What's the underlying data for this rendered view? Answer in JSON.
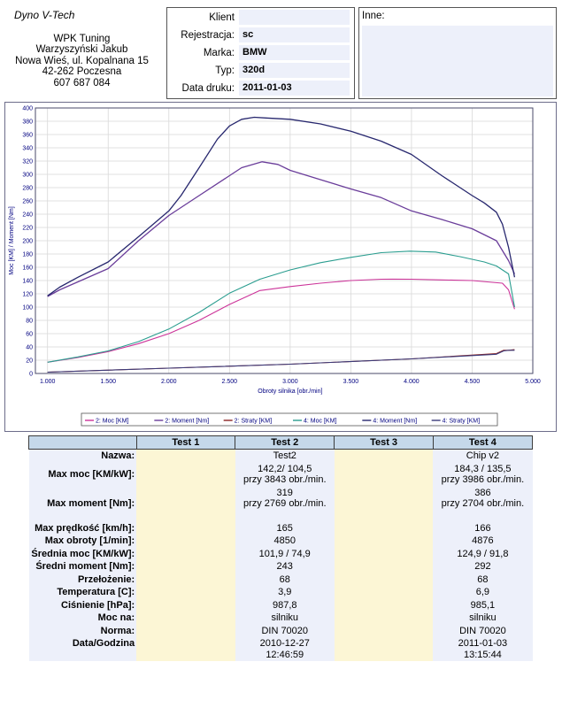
{
  "company": {
    "brand": "Dyno V-Tech",
    "lines": [
      "WPK Tuning",
      "Warzyszyński Jakub",
      "Nowa Wieś, ul. Kopalnana 15",
      "42-262 Poczesna",
      "607 687 084"
    ]
  },
  "info": [
    {
      "label": "Klient",
      "value": ""
    },
    {
      "label": "Rejestracja:",
      "value": "sc"
    },
    {
      "label": "Marka:",
      "value": "BMW"
    },
    {
      "label": "Typ:",
      "value": "320d"
    },
    {
      "label": "Data druku:",
      "value": "2011-01-03"
    }
  ],
  "notes_label": "Inne:",
  "chart_data": {
    "type": "line",
    "xlabel": "Obroty silnika [obr./min]",
    "ylabel": "Moc [KM] / Moment [Nm]",
    "xlim": [
      900,
      5000
    ],
    "ylim": [
      0,
      400
    ],
    "x_ticks": [
      1000,
      1500,
      2000,
      2500,
      3000,
      3500,
      4000,
      4500,
      5000
    ],
    "x_tick_labels": [
      "1.000",
      "1.500",
      "2.000",
      "2.500",
      "3.000",
      "3.500",
      "4.000",
      "4.500",
      "5.000"
    ],
    "y_ticks": [
      0,
      20,
      40,
      60,
      80,
      100,
      120,
      140,
      160,
      180,
      200,
      220,
      240,
      260,
      280,
      300,
      320,
      340,
      360,
      380,
      400
    ],
    "grid": true,
    "legend_position": "bottom",
    "series": [
      {
        "name": "2: Moc [KM]",
        "color": "#cc3399",
        "x": [
          1000,
          1250,
          1500,
          1750,
          2000,
          2250,
          2500,
          2750,
          3000,
          3250,
          3500,
          3750,
          3843,
          4000,
          4250,
          4500,
          4750,
          4800,
          4850
        ],
        "y": [
          17,
          24,
          33,
          45,
          60,
          80,
          104,
          125,
          131,
          136,
          140,
          142,
          142.2,
          142,
          141,
          140,
          136,
          126,
          97
        ]
      },
      {
        "name": "2: Moment [Nm]",
        "color": "#6a3d9a",
        "x": [
          1000,
          1100,
          1250,
          1500,
          1750,
          2000,
          2250,
          2500,
          2600,
          2769,
          2900,
          3000,
          3250,
          3500,
          3750,
          4000,
          4250,
          4500,
          4700,
          4800,
          4850
        ],
        "y": [
          116,
          126,
          138,
          158,
          200,
          238,
          268,
          298,
          310,
          319,
          315,
          306,
          292,
          278,
          265,
          245,
          232,
          218,
          200,
          170,
          150
        ],
        "width": 1.3
      },
      {
        "name": "2: Straty [KM]",
        "color": "#8b2323",
        "x": [
          1000,
          2000,
          3000,
          4000,
          4700,
          4760,
          4800,
          4850
        ],
        "y": [
          2,
          8,
          14,
          22,
          30,
          35,
          35,
          36
        ]
      },
      {
        "name": "4: Moc [KM]",
        "color": "#2a9d8f",
        "x": [
          1000,
          1250,
          1500,
          1750,
          2000,
          2250,
          2500,
          2750,
          3000,
          3250,
          3500,
          3750,
          3986,
          4200,
          4400,
          4600,
          4700,
          4800,
          4850
        ],
        "y": [
          17,
          25,
          34,
          48,
          67,
          92,
          121,
          142,
          156,
          167,
          175,
          182,
          184.3,
          183,
          176,
          168,
          162,
          150,
          100
        ]
      },
      {
        "name": "4: Moment [Nm]",
        "color": "#27276e",
        "x": [
          1000,
          1100,
          1250,
          1500,
          1750,
          2000,
          2100,
          2250,
          2400,
          2500,
          2600,
          2704,
          2800,
          3000,
          3250,
          3500,
          3750,
          4000,
          4250,
          4500,
          4600,
          4700,
          4750,
          4800,
          4850
        ],
        "y": [
          117,
          130,
          145,
          168,
          206,
          245,
          268,
          310,
          353,
          373,
          383,
          386,
          385,
          383,
          376,
          365,
          350,
          330,
          298,
          268,
          257,
          243,
          225,
          190,
          145
        ],
        "width": 1.3
      },
      {
        "name": "4: Straty [KM]",
        "color": "#3b3b7a",
        "x": [
          1000,
          2000,
          3000,
          4000,
          4700,
          4760,
          4800,
          4850
        ],
        "y": [
          2,
          8,
          14,
          22,
          29,
          34,
          35,
          35
        ]
      }
    ]
  },
  "results": {
    "headers": [
      "Test 1",
      "Test 2",
      "Test 3",
      "Test 4"
    ],
    "rows": [
      {
        "label": "Nazwa:",
        "t2": "Test2",
        "t4": "Chip v2"
      },
      {
        "label": "Max moc [KM/kW]:",
        "t2": "142,2/ 104,5\nprzy 3843 obr./min.",
        "t4": "184,3 / 135,5\nprzy 3986 obr./min."
      },
      {
        "label": "Max moment [Nm]:",
        "t2": "319\nprzy 2769 obr./min.",
        "t4": "386\nprzy 2704 obr./min."
      },
      {
        "label": "Max prędkość [km/h]:",
        "t2": "165",
        "t4": "166"
      },
      {
        "label": "Max obroty [1/min]:",
        "t2": "4850",
        "t4": "4876"
      },
      {
        "label": "Średnia moc [KM/kW]:",
        "t2": "101,9 / 74,9",
        "t4": "124,9 / 91,8"
      },
      {
        "label": "Średni moment [Nm]:",
        "t2": "243",
        "t4": "292"
      },
      {
        "label": "Przełożenie:",
        "t2": "68",
        "t4": "68"
      },
      {
        "label": "Temperatura [C]:",
        "t2": "3,9",
        "t4": "6,9"
      },
      {
        "label": "Ciśnienie [hPa]:",
        "t2": "987,8",
        "t4": "985,1"
      },
      {
        "label": "Moc na:",
        "t2": "silniku",
        "t4": "silniku"
      },
      {
        "label": "Norma:",
        "t2": "DIN 70020",
        "t4": "DIN 70020"
      },
      {
        "label": "Data/Godzina",
        "t2": "2010-12-27\n12:46:59",
        "t4": "2011-01-03\n13:15:44"
      }
    ]
  }
}
